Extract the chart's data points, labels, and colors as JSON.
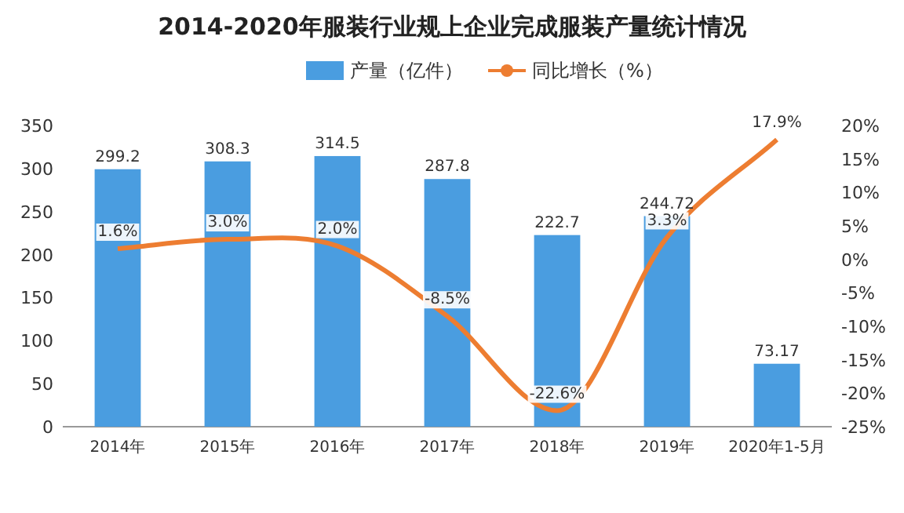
{
  "chart_data": {
    "type": "bar",
    "title": "2014-2020年服装行业规上企业完成服装产量统计情况",
    "categories": [
      "2014年",
      "2015年",
      "2016年",
      "2017年",
      "2018年",
      "2019年",
      "2020年1-5月"
    ],
    "series": [
      {
        "name": "产量（亿件）",
        "color": "#4a9de0",
        "values": [
          299.2,
          308.3,
          314.5,
          287.8,
          222.7,
          244.72,
          73.17
        ],
        "value_labels": [
          "299.2",
          "308.3",
          "314.5",
          "287.8",
          "222.7",
          "244.72",
          "73.17"
        ]
      },
      {
        "name": "同比增长（%）",
        "type": "line",
        "axis": "y2",
        "color": "#ed7d31",
        "values": [
          1.6,
          3.0,
          2.0,
          -8.5,
          -22.6,
          3.3,
          17.9
        ],
        "value_labels": [
          "1.6%",
          "3.0%",
          "2.0%",
          "-8.5%",
          "-22.6%",
          "3.3%",
          "17.9%"
        ]
      }
    ],
    "ylim": [
      0,
      350
    ],
    "yticks": [
      0,
      50,
      100,
      150,
      200,
      250,
      300,
      350
    ],
    "y2lim": [
      -25,
      20
    ],
    "y2ticks": [
      {
        "value": -25,
        "label": "-25%"
      },
      {
        "value": -20,
        "label": "-20%"
      },
      {
        "value": -15,
        "label": "-15%"
      },
      {
        "value": -10,
        "label": "-10%"
      },
      {
        "value": -5,
        "label": "-5%"
      },
      {
        "value": 0,
        "label": "0%"
      },
      {
        "value": 5,
        "label": "5%"
      },
      {
        "value": 10,
        "label": "10%"
      },
      {
        "value": 15,
        "label": "15%"
      },
      {
        "value": 20,
        "label": "20%"
      }
    ],
    "legend": "top",
    "marker": "none",
    "grid": false
  }
}
